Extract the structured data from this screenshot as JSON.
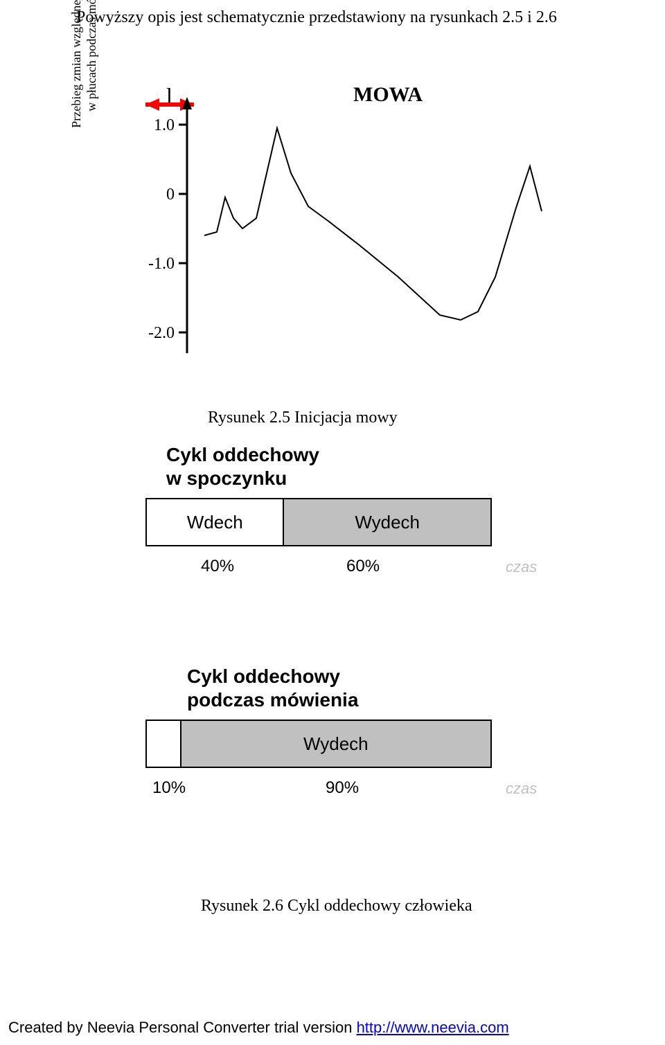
{
  "intro": "Powyższy opis jest schematycznie przedstawiony na rysunkach 2.5 i 2.6",
  "chart1": {
    "type": "line",
    "yaxis_unit": "l",
    "yaxis_label_line1": "Przebieg zmian względnej objętości",
    "yaxis_label_line2": "w płucach podczas mówienia",
    "mowa_label": "MOWA",
    "arrow_color": "#ff0000",
    "ylim": [
      -2.2,
      1.2
    ],
    "yticks": [
      "1.0",
      "0",
      "-1.0",
      "-2.0"
    ],
    "line_color": "#000000",
    "line_width": 2,
    "axis_color": "#000000",
    "background": "#ffffff",
    "points": [
      [
        0,
        -0.6
      ],
      [
        18,
        -0.55
      ],
      [
        30,
        -0.05
      ],
      [
        42,
        -0.35
      ],
      [
        55,
        -0.5
      ],
      [
        75,
        -0.35
      ],
      [
        105,
        0.95
      ],
      [
        125,
        0.3
      ],
      [
        150,
        -0.18
      ],
      [
        180,
        -0.4
      ],
      [
        225,
        -0.75
      ],
      [
        280,
        -1.2
      ],
      [
        340,
        -1.75
      ],
      [
        370,
        -1.82
      ],
      [
        395,
        -1.7
      ],
      [
        420,
        -1.2
      ],
      [
        450,
        -0.2
      ],
      [
        470,
        0.4
      ],
      [
        487,
        -0.25
      ]
    ]
  },
  "caption1": "Rysunek 2.5 Inicjacja mowy",
  "diagram2a": {
    "type": "bar",
    "title_line1": "Cykl oddechowy",
    "title_line2": "w spoczynku",
    "segments": [
      {
        "label": "Wdech",
        "percent": 40,
        "bg": "#ffffff"
      },
      {
        "label": "Wydech",
        "percent": 60,
        "bg": "#c0c0c0"
      }
    ],
    "pct_label_1": "40%",
    "pct_label_2": "60%",
    "czas": "czas",
    "title_fontsize": 28,
    "label_fontsize": 26
  },
  "diagram2b": {
    "type": "bar",
    "title_line1": "Cykl oddechowy",
    "title_line2": "podczas mówienia",
    "segments": [
      {
        "label": "",
        "percent": 10,
        "bg": "#ffffff"
      },
      {
        "label": "Wydech",
        "percent": 90,
        "bg": "#c0c0c0"
      }
    ],
    "pct_label_1": "10%",
    "pct_label_2": "90%",
    "czas": "czas",
    "title_fontsize": 28,
    "label_fontsize": 26
  },
  "caption2": "Rysunek 2.6 Cykl oddechowy człowieka",
  "footer_text": "Created by Neevia Personal Converter trial version ",
  "footer_link": "http://www.neevia.com"
}
